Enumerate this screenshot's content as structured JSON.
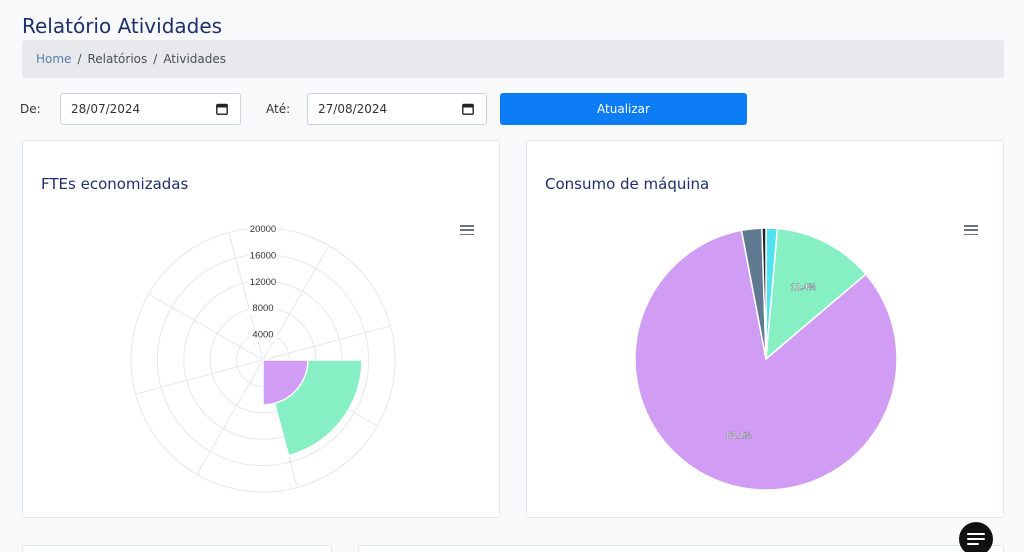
{
  "page": {
    "title": "Relatório Atividades",
    "breadcrumb": [
      "Home",
      "Relatórios",
      "Atividades"
    ]
  },
  "filters": {
    "from_label": "De:",
    "from_value": "28/07/2024",
    "to_label": "Até:",
    "to_value": "27/08/2024",
    "update_button": "Atualizar"
  },
  "colors": {
    "accent": "#0d7df5",
    "green": "#86efc4",
    "purple": "#d09cf4",
    "cyan": "#4fe3f0",
    "slate": "#5f7a90",
    "dark": "#222222"
  },
  "icons": [
    "calendar-icon",
    "menu-icon",
    "chat-icon"
  ],
  "chart_data": [
    {
      "type": "polar-area",
      "title": "FTEs economizadas",
      "radial_ticks": [
        "4000",
        "8000",
        "12000",
        "16000",
        "20000"
      ],
      "rmax": 20000,
      "series": [
        {
          "values": [
            800,
            15000,
            0,
            0,
            0,
            0,
            0,
            0
          ]
        }
      ],
      "inner_series": [
        {
          "values": [
            0,
            0,
            0,
            0,
            0,
            0,
            0,
            0
          ]
        }
      ],
      "slices": [
        {
          "color": "#4fe3f0",
          "value": 800,
          "start_deg": 75,
          "end_deg": 90
        },
        {
          "color": "#86efc4",
          "value": 15000,
          "start_deg": 90,
          "end_deg": 165
        },
        {
          "color": "#d09cf4",
          "value": 6800,
          "start_deg": 90,
          "end_deg": 180
        }
      ]
    },
    {
      "type": "pie",
      "title": "Consumo de máquina",
      "slices": [
        {
          "value": 1.4,
          "color": "#4fe3f0",
          "label": ""
        },
        {
          "value": 12.4,
          "color": "#86efc4",
          "label": "12.4%"
        },
        {
          "value": 83.2,
          "color": "#d09cf4",
          "label": "83.2%"
        },
        {
          "value": 2.5,
          "color": "#5f7a90",
          "label": ""
        },
        {
          "value": 0.5,
          "color": "#222222",
          "label": ""
        }
      ]
    }
  ]
}
